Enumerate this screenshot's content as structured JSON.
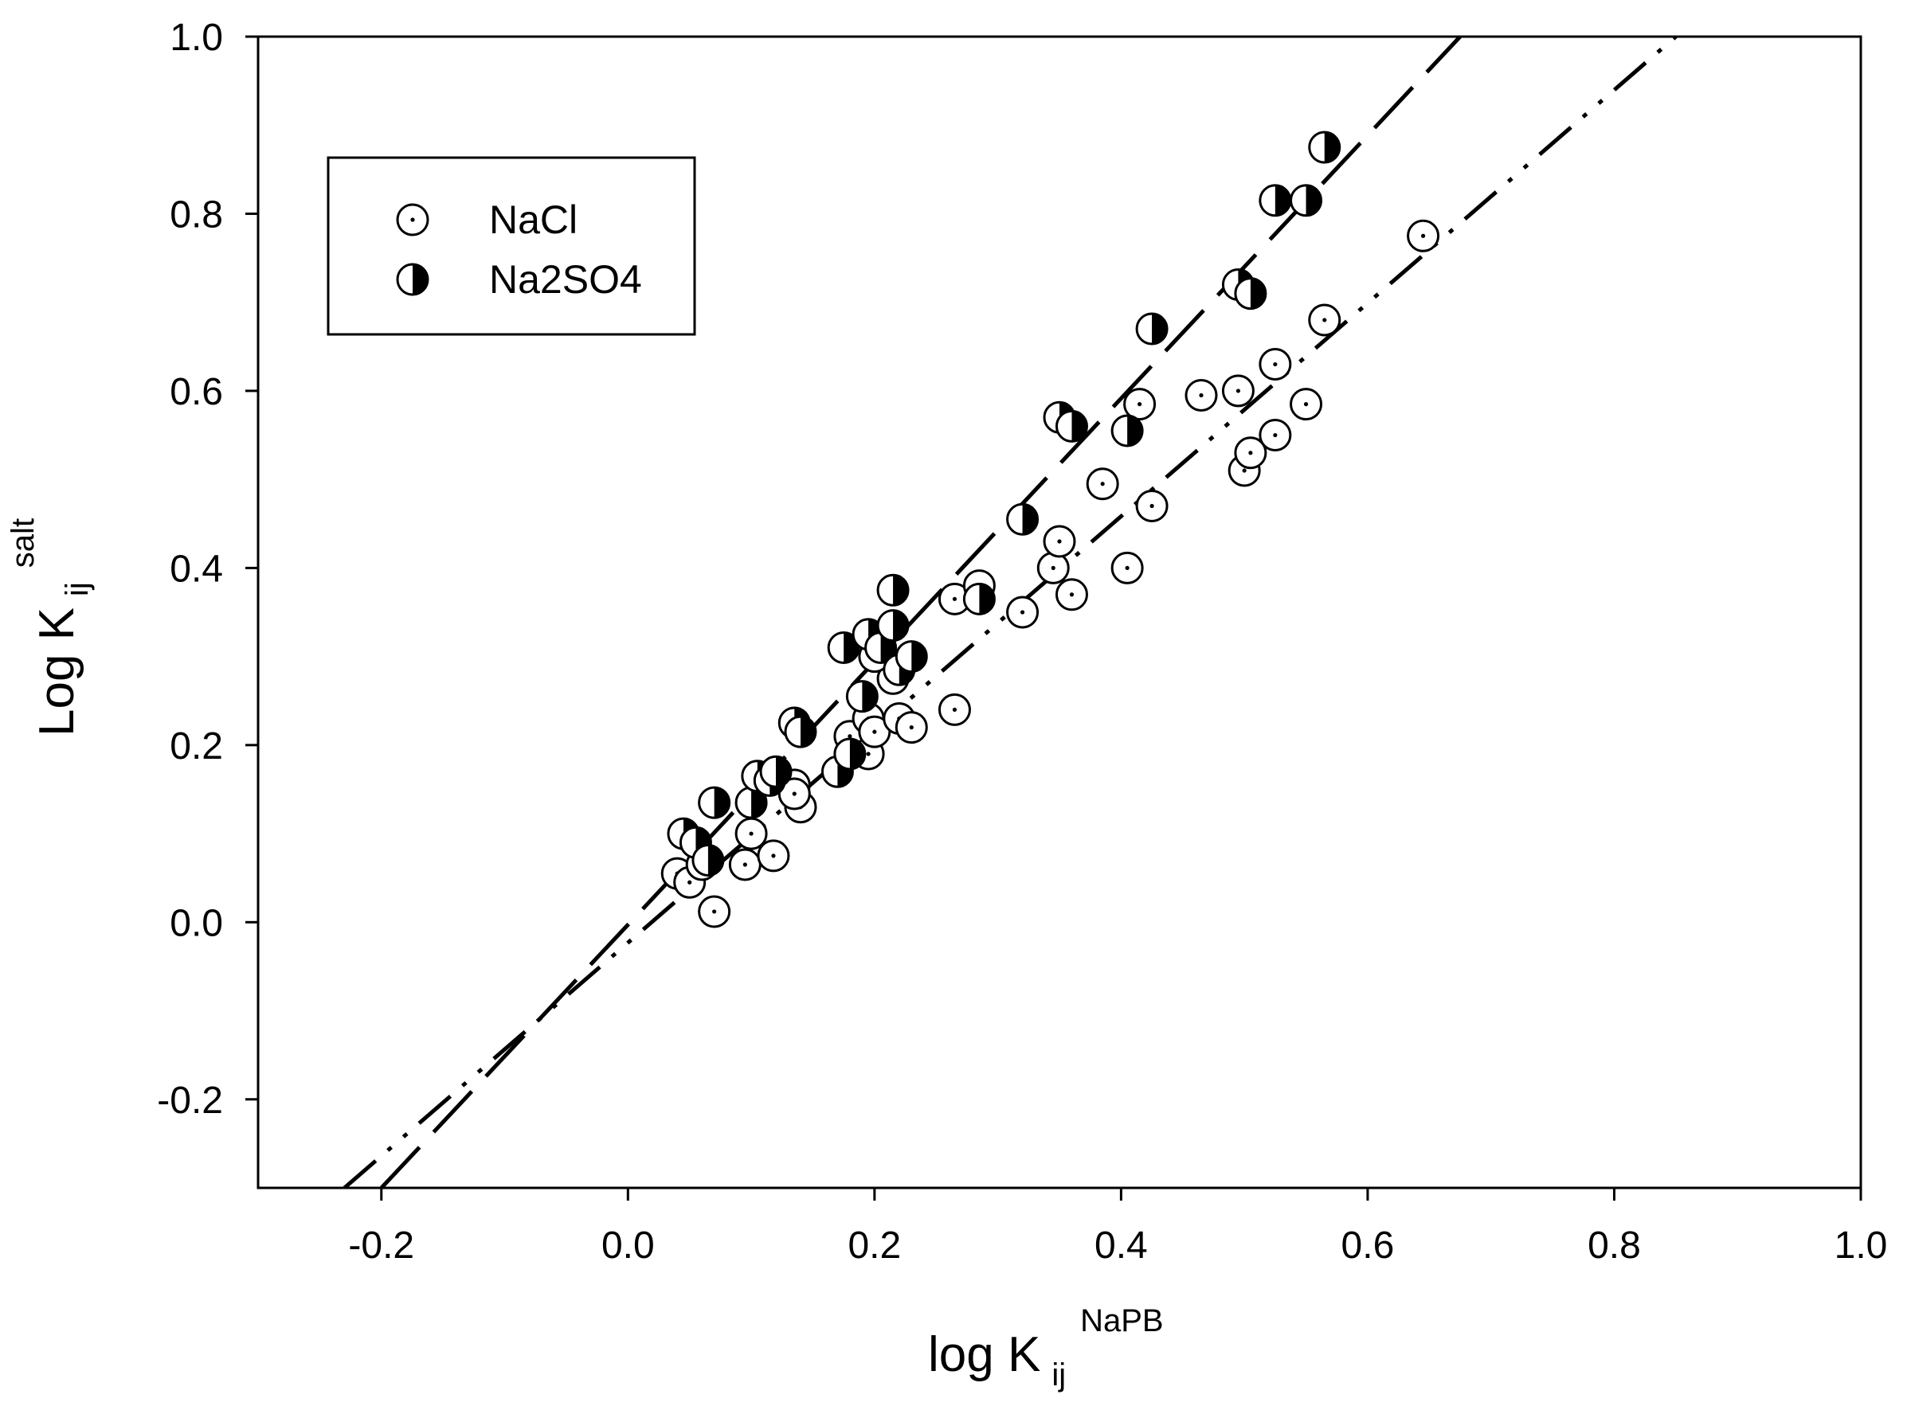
{
  "chart_data": {
    "type": "scatter",
    "title": "",
    "xlabel": {
      "main": "log K",
      "sub": "ij",
      "sup": "NaPB"
    },
    "ylabel": {
      "main": "Log K",
      "sub": "ij",
      "sup": "salt"
    },
    "xlim": [
      -0.3,
      1.0
    ],
    "ylim": [
      -0.3,
      1.0
    ],
    "xticks": [
      -0.2,
      0.0,
      0.2,
      0.4,
      0.6,
      0.8,
      1.0
    ],
    "xtick_labels": [
      "-0.2",
      "0.0",
      "0.2",
      "0.4",
      "0.6",
      "0.8",
      "1.0"
    ],
    "yticks": [
      -0.2,
      0.0,
      0.2,
      0.4,
      0.6,
      0.8,
      1.0
    ],
    "ytick_labels": [
      "-0.2",
      "0.0",
      "0.2",
      "0.4",
      "0.6",
      "0.8",
      "1.0"
    ],
    "grid": false,
    "legend_position": "top-left",
    "series": [
      {
        "name": "NaCl",
        "marker": "circle-dot",
        "points": [
          [
            0.04,
            0.055
          ],
          [
            0.05,
            0.045
          ],
          [
            0.07,
            0.012
          ],
          [
            0.06,
            0.065
          ],
          [
            0.095,
            0.065
          ],
          [
            0.1,
            0.1
          ],
          [
            0.118,
            0.075
          ],
          [
            0.135,
            0.155
          ],
          [
            0.14,
            0.13
          ],
          [
            0.135,
            0.145
          ],
          [
            0.18,
            0.21
          ],
          [
            0.195,
            0.19
          ],
          [
            0.195,
            0.23
          ],
          [
            0.2,
            0.215
          ],
          [
            0.215,
            0.275
          ],
          [
            0.22,
            0.23
          ],
          [
            0.23,
            0.22
          ],
          [
            0.2,
            0.3
          ],
          [
            0.265,
            0.24
          ],
          [
            0.265,
            0.365
          ],
          [
            0.285,
            0.38
          ],
          [
            0.32,
            0.35
          ],
          [
            0.345,
            0.4
          ],
          [
            0.35,
            0.43
          ],
          [
            0.36,
            0.37
          ],
          [
            0.385,
            0.495
          ],
          [
            0.405,
            0.4
          ],
          [
            0.415,
            0.585
          ],
          [
            0.425,
            0.47
          ],
          [
            0.465,
            0.595
          ],
          [
            0.495,
            0.6
          ],
          [
            0.5,
            0.51
          ],
          [
            0.505,
            0.53
          ],
          [
            0.525,
            0.55
          ],
          [
            0.525,
            0.63
          ],
          [
            0.55,
            0.585
          ],
          [
            0.565,
            0.68
          ],
          [
            0.645,
            0.775
          ]
        ]
      },
      {
        "name": "Na2SO4",
        "marker": "circle-half-filled",
        "points": [
          [
            0.045,
            0.1
          ],
          [
            0.055,
            0.09
          ],
          [
            0.065,
            0.07
          ],
          [
            0.07,
            0.135
          ],
          [
            0.1,
            0.135
          ],
          [
            0.105,
            0.165
          ],
          [
            0.115,
            0.16
          ],
          [
            0.12,
            0.17
          ],
          [
            0.135,
            0.225
          ],
          [
            0.14,
            0.215
          ],
          [
            0.17,
            0.17
          ],
          [
            0.175,
            0.31
          ],
          [
            0.18,
            0.19
          ],
          [
            0.19,
            0.255
          ],
          [
            0.195,
            0.325
          ],
          [
            0.205,
            0.31
          ],
          [
            0.215,
            0.335
          ],
          [
            0.215,
            0.375
          ],
          [
            0.22,
            0.285
          ],
          [
            0.23,
            0.3
          ],
          [
            0.285,
            0.365
          ],
          [
            0.32,
            0.455
          ],
          [
            0.35,
            0.57
          ],
          [
            0.36,
            0.56
          ],
          [
            0.405,
            0.555
          ],
          [
            0.425,
            0.67
          ],
          [
            0.495,
            0.72
          ],
          [
            0.505,
            0.71
          ],
          [
            0.525,
            0.815
          ],
          [
            0.55,
            0.815
          ],
          [
            0.565,
            0.875
          ]
        ]
      }
    ],
    "fit_lines": [
      {
        "series": "Na2SO4",
        "style": "long-dash",
        "points": [
          [
            -0.2,
            -0.3
          ],
          [
            0.675,
            1.0
          ]
        ]
      },
      {
        "series": "NaCl",
        "style": "dash-dot-dot",
        "points": [
          [
            -0.23,
            -0.3
          ],
          [
            0.85,
            1.0
          ]
        ]
      }
    ],
    "legend": [
      {
        "label": "NaCl",
        "marker": "circle-dot"
      },
      {
        "label": "Na2SO4",
        "marker": "circle-half-filled"
      }
    ]
  }
}
